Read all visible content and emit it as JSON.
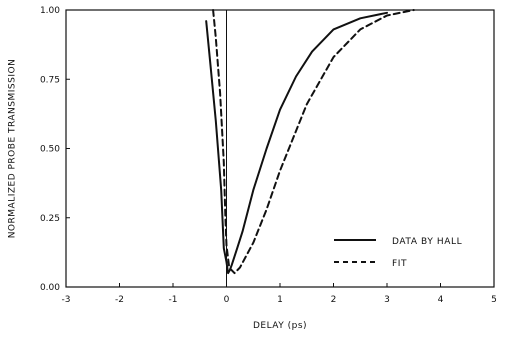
{
  "chart_data": {
    "type": "line",
    "xlabel": "DELAY (ps)",
    "ylabel": "NORMALIZED PROBE TRANSMISSION",
    "xlim": [
      -3,
      5
    ],
    "ylim": [
      0,
      1
    ],
    "x_ticks": [
      "-3",
      "-2",
      "-1",
      "0",
      "1",
      "2",
      "3",
      "4",
      "5"
    ],
    "y_ticks": [
      "0.00",
      "0.25",
      "0.50",
      "0.75",
      "1.00"
    ],
    "vertical_line_at_x": 0,
    "legend_position": "bottom-right",
    "series": [
      {
        "name": "DATA BY HALL",
        "style": "solid",
        "x": [
          -0.38,
          -0.3,
          -0.2,
          -0.1,
          -0.05,
          0.0,
          0.03,
          0.06,
          0.1,
          0.2,
          0.3,
          0.5,
          0.75,
          1.0,
          1.3,
          1.6,
          2.0,
          2.5,
          3.0
        ],
        "y": [
          0.96,
          0.8,
          0.6,
          0.35,
          0.14,
          0.09,
          0.05,
          0.06,
          0.08,
          0.14,
          0.2,
          0.35,
          0.5,
          0.64,
          0.76,
          0.85,
          0.93,
          0.97,
          0.99
        ]
      },
      {
        "name": "FIT",
        "style": "dashed",
        "x": [
          -0.25,
          -0.2,
          -0.12,
          -0.05,
          -0.02,
          0.0,
          0.05,
          0.15,
          0.25,
          0.5,
          0.75,
          1.0,
          1.5,
          2.0,
          2.5,
          3.0,
          3.5
        ],
        "y": [
          1.0,
          0.9,
          0.7,
          0.45,
          0.25,
          0.15,
          0.07,
          0.05,
          0.07,
          0.16,
          0.28,
          0.42,
          0.66,
          0.83,
          0.93,
          0.98,
          1.0
        ]
      }
    ]
  }
}
